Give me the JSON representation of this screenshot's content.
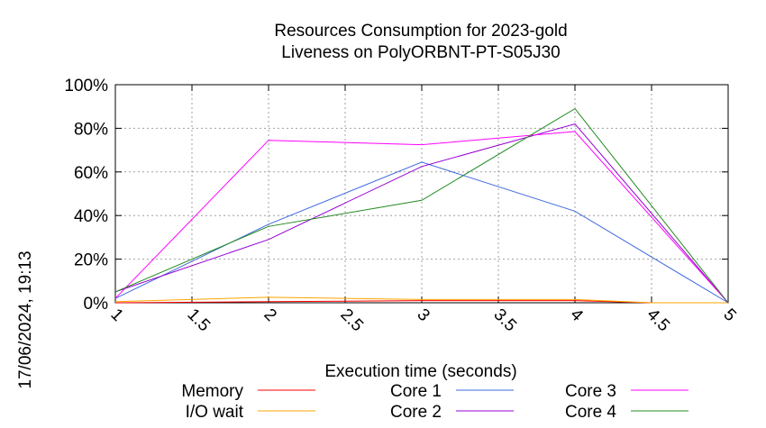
{
  "chart_data": {
    "type": "line",
    "title_line1": "Resources Consumption for 2023-gold",
    "title_line2": "Liveness on PolyORBNT-PT-S05J30",
    "xlabel": "Execution time (seconds)",
    "ylabel": "",
    "timestamp": "17/06/2024, 19:13",
    "xlim": [
      1,
      5
    ],
    "ylim": [
      0,
      100
    ],
    "x_ticks": [
      "1",
      "1.5",
      "2",
      "2.5",
      "3",
      "3.5",
      "4",
      "4.5",
      "5"
    ],
    "y_ticks": [
      "0%",
      "20%",
      "40%",
      "60%",
      "80%",
      "100%"
    ],
    "grid": true,
    "legend_position": "bottom",
    "series": [
      {
        "name": "Memory",
        "color": "#ff0000",
        "x": [
          1,
          2,
          3,
          4,
          4.5,
          5
        ],
        "y": [
          0,
          0.5,
          1,
          1,
          0,
          0
        ]
      },
      {
        "name": "I/O wait",
        "color": "#ffa500",
        "x": [
          1,
          2,
          3,
          4,
          4.5,
          5
        ],
        "y": [
          0.5,
          2.5,
          1.5,
          1.5,
          0,
          0
        ]
      },
      {
        "name": "Core 1",
        "color": "#4169e1",
        "x": [
          1,
          2,
          3,
          4,
          5
        ],
        "y": [
          2,
          36,
          64.5,
          42,
          0
        ]
      },
      {
        "name": "Core 2",
        "color": "#9400d3",
        "x": [
          1,
          2,
          3,
          4,
          5
        ],
        "y": [
          5,
          29,
          62.5,
          82,
          0
        ]
      },
      {
        "name": "Core 3",
        "color": "#ff00ff",
        "x": [
          1,
          2,
          3,
          4,
          5
        ],
        "y": [
          2,
          74.5,
          72.5,
          78.5,
          0
        ]
      },
      {
        "name": "Core 4",
        "color": "#228b22",
        "x": [
          1,
          2,
          3,
          4,
          5
        ],
        "y": [
          5,
          35,
          47,
          89,
          0
        ]
      }
    ]
  }
}
